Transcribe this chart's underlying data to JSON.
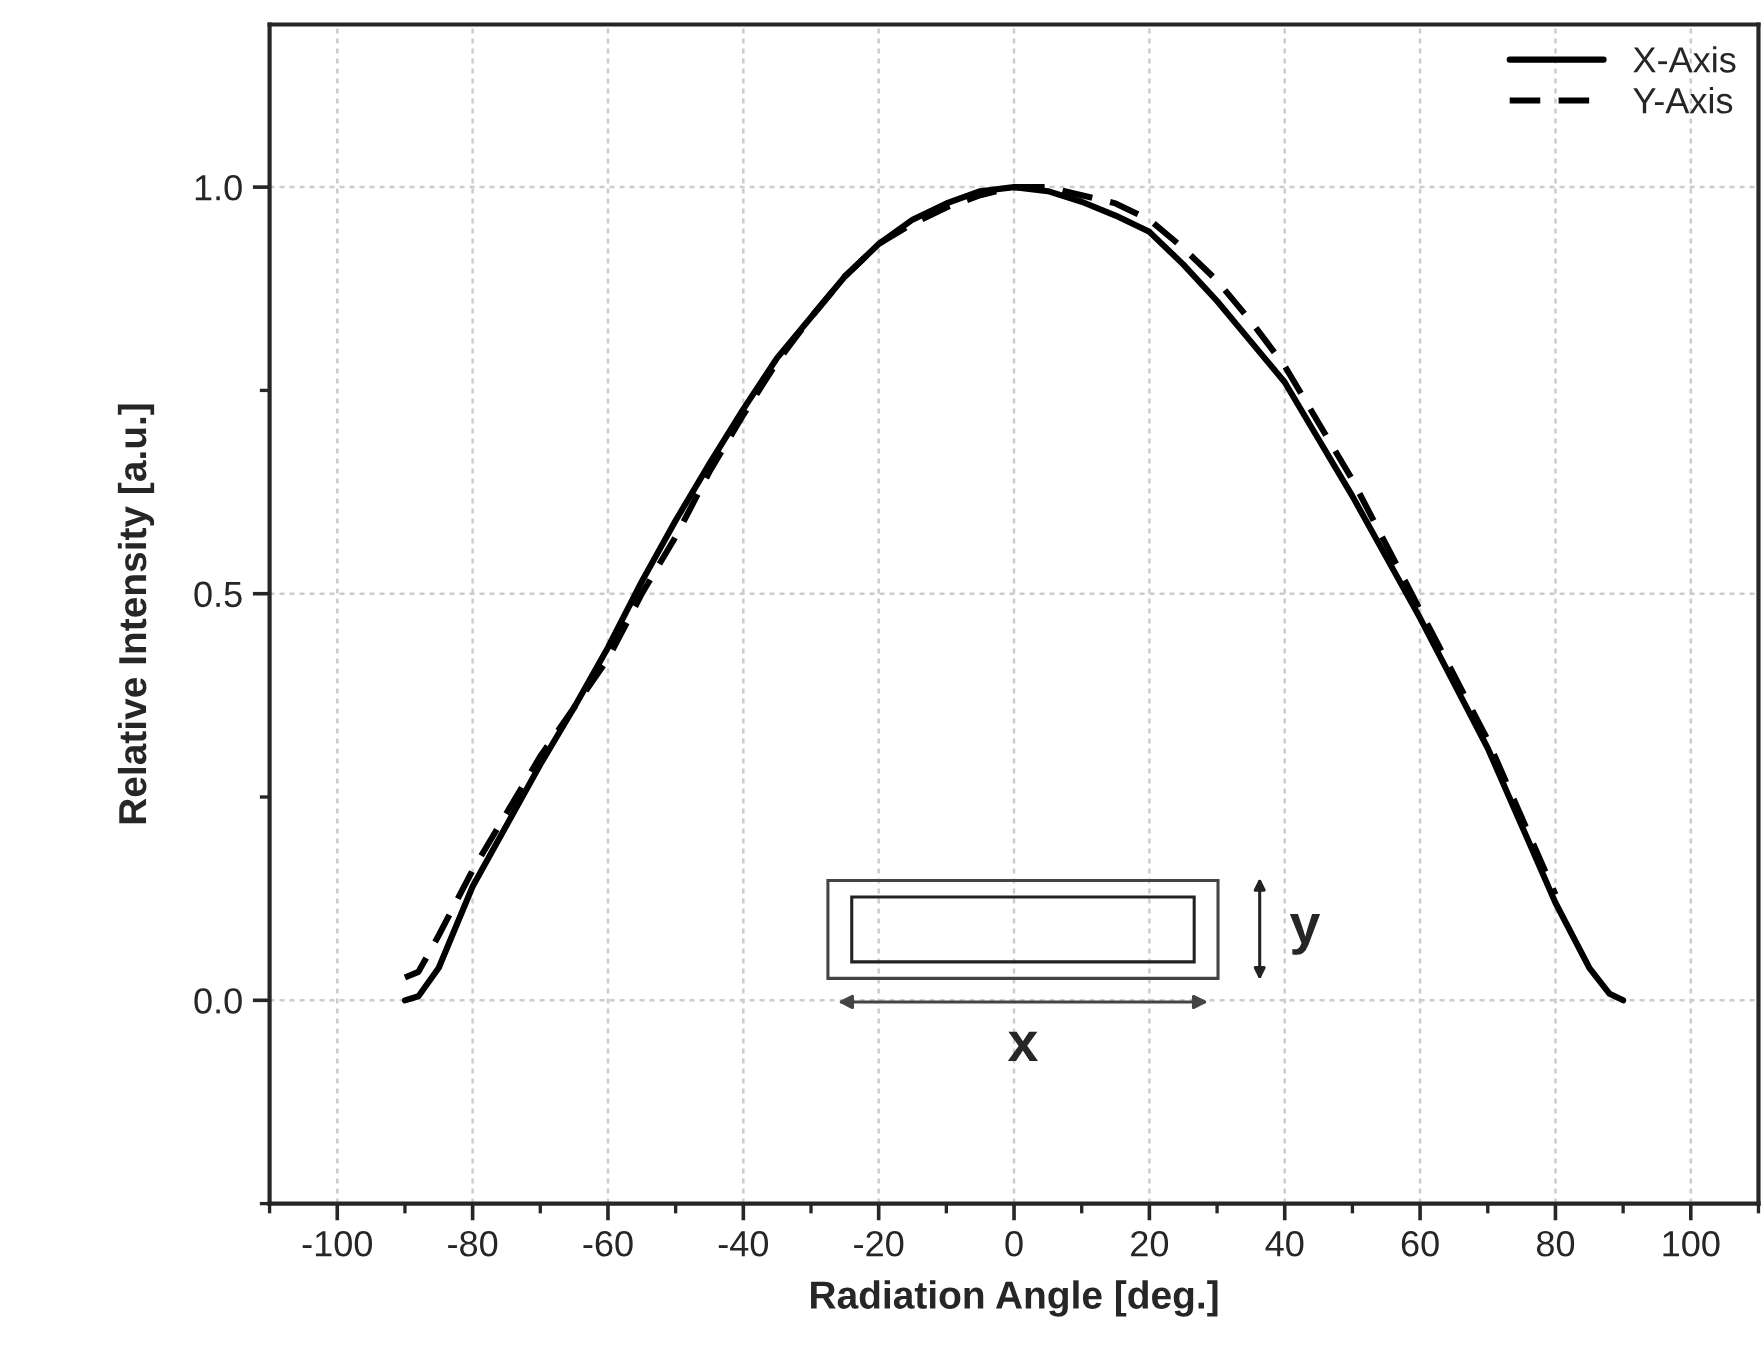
{
  "chart_data": {
    "type": "line",
    "xlabel": "Radiation Angle [deg.]",
    "ylabel": "Relative Intensity [a.u.]",
    "x": [
      -90,
      -88,
      -85,
      -80,
      -75,
      -70,
      -65,
      -60,
      -55,
      -50,
      -45,
      -40,
      -35,
      -30,
      -25,
      -20,
      -15,
      -10,
      -5,
      0,
      5,
      10,
      15,
      20,
      25,
      30,
      35,
      40,
      45,
      50,
      55,
      60,
      65,
      70,
      75,
      80,
      85,
      88,
      90
    ],
    "series": [
      {
        "name": "X-Axis",
        "color": "#000000",
        "line_style": "solid",
        "values": [
          0.0,
          0.005,
          0.04,
          0.14,
          0.215,
          0.29,
          0.36,
          0.434,
          0.515,
          0.59,
          0.66,
          0.727,
          0.79,
          0.84,
          0.89,
          0.93,
          0.96,
          0.98,
          0.995,
          1.0,
          0.995,
          0.982,
          0.965,
          0.945,
          0.905,
          0.86,
          0.81,
          0.76,
          0.69,
          0.62,
          0.545,
          0.47,
          0.39,
          0.31,
          0.215,
          0.12,
          0.04,
          0.008,
          0.0
        ]
      },
      {
        "name": "Y-Axis",
        "color": "#000000",
        "line_style": "dashed",
        "values": [
          0.028,
          0.035,
          0.08,
          0.16,
          0.23,
          0.3,
          0.36,
          0.42,
          0.5,
          0.57,
          0.65,
          0.72,
          0.785,
          0.84,
          0.89,
          0.93,
          0.955,
          0.975,
          0.99,
          1.0,
          1.0,
          0.99,
          0.98,
          0.96,
          0.925,
          0.885,
          0.835,
          0.78,
          0.71,
          0.64,
          0.56,
          0.48,
          0.4,
          0.32,
          0.225,
          0.13,
          null,
          null,
          null
        ]
      }
    ],
    "xlim": [
      -110,
      110
    ],
    "ylim": [
      -0.25,
      1.2
    ],
    "xticks": [
      -100,
      -80,
      -60,
      -40,
      -20,
      0,
      20,
      40,
      60,
      80,
      100
    ],
    "yticks": [
      {
        "value": 0,
        "label": "0.0"
      },
      {
        "value": 0.5,
        "label": "0.5"
      },
      {
        "value": 1.0,
        "label": "1.0"
      }
    ],
    "grid": true,
    "legend": "top right",
    "marker": "none",
    "annotations": [
      "x",
      "y"
    ]
  }
}
